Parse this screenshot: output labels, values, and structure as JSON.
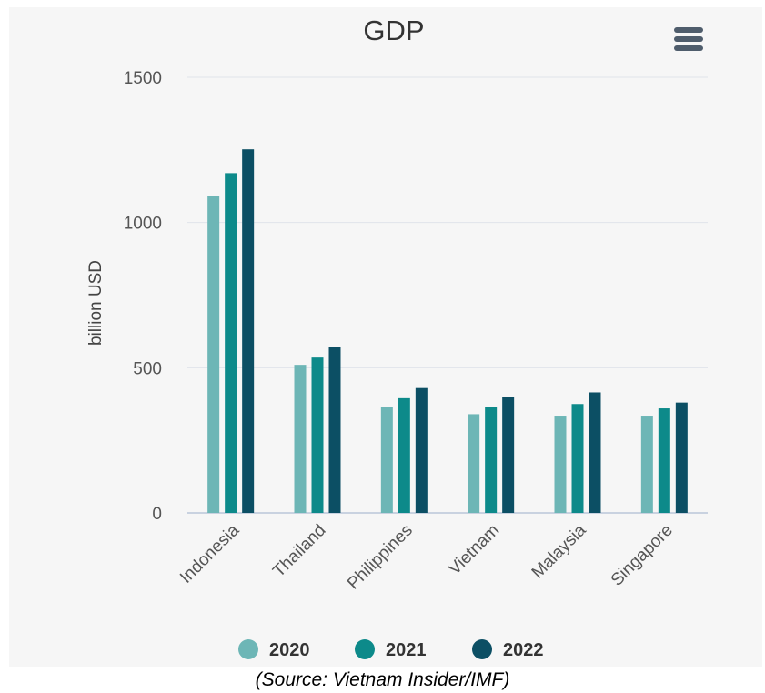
{
  "chart_data": {
    "type": "bar",
    "title": "GDP",
    "xlabel": "",
    "ylabel": "billion USD",
    "ylim": [
      0,
      1500
    ],
    "yticks": [
      0,
      500,
      1000,
      1500
    ],
    "grid": true,
    "legend_position": "bottom",
    "categories": [
      "Indonesia",
      "Thailand",
      "Philippines",
      "Vietnam",
      "Malaysia",
      "Singapore"
    ],
    "series": [
      {
        "name": "2020",
        "color": "#6db6b6",
        "values": [
          1090,
          510,
          365,
          340,
          335,
          335
        ]
      },
      {
        "name": "2021",
        "color": "#0d8a8a",
        "values": [
          1170,
          535,
          395,
          365,
          375,
          360
        ]
      },
      {
        "name": "2022",
        "color": "#0c4f64",
        "values": [
          1252,
          570,
          430,
          400,
          415,
          380
        ]
      }
    ]
  },
  "menu": {
    "icon": "hamburger-menu-icon",
    "color": "#4f5d6c"
  },
  "source_note": "(Source: Vietnam Insider/IMF)"
}
